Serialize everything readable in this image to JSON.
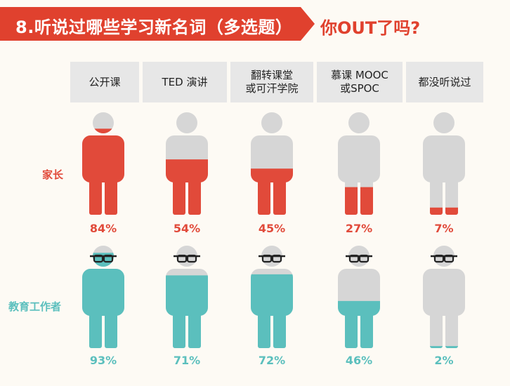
{
  "title": "8.听说过哪些学习新名词（多选题）",
  "subtitle": "你OUT了吗?",
  "colors": {
    "banner": "#e0412e",
    "parents": "#e14a3a",
    "educators": "#5bbfbd",
    "empty": "#d6d6d6",
    "glasses": "#222222"
  },
  "chart_data": {
    "type": "pictogram",
    "categories": [
      "公开课",
      "TED 演讲",
      "翻转课堂\n或可汗学院",
      "慕课 MOOC\n或SPOC",
      "都没听说过"
    ],
    "series": [
      {
        "name": "家长",
        "values": [
          84,
          54,
          45,
          27,
          7
        ],
        "labels": [
          "84%",
          "54%",
          "45%",
          "27%",
          "7%"
        ]
      },
      {
        "name": "教育工作者",
        "values": [
          93,
          71,
          72,
          46,
          2
        ],
        "labels": [
          "93%",
          "71%",
          "72%",
          "46%",
          "2%"
        ]
      }
    ],
    "unit": "%",
    "ylim": [
      0,
      100
    ]
  }
}
